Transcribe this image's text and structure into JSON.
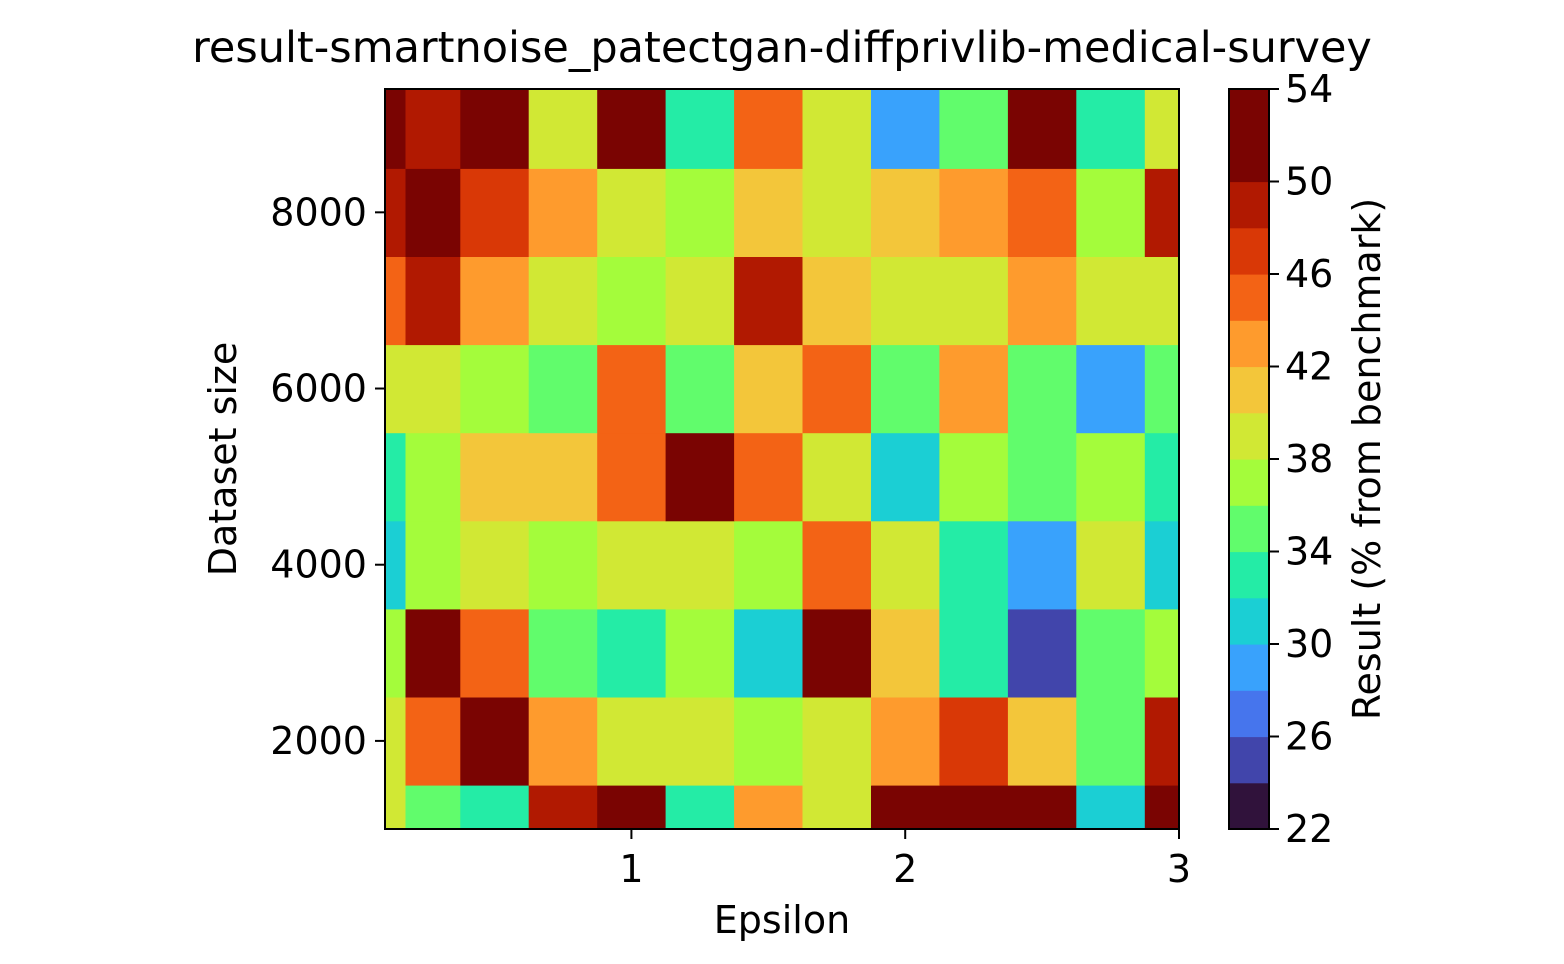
{
  "chart_data": {
    "type": "heatmap",
    "title": "result-smartnoise_patectgan-diffprivlib-medical-survey",
    "xlabel": "Epsilon",
    "ylabel": "Dataset size",
    "colorbar_label": "Result (% from benchmark)",
    "xlim": [
      0.1,
      3.0
    ],
    "ylim": [
      1000,
      9400
    ],
    "x": [
      0.1,
      0.25,
      0.5,
      0.75,
      1.0,
      1.25,
      1.5,
      1.75,
      2.0,
      2.25,
      2.5,
      2.75,
      3.0
    ],
    "y": [
      1000,
      2000,
      3000,
      4000,
      5000,
      6000,
      7000,
      8000,
      9000
    ],
    "z": [
      [
        38,
        34,
        32,
        48,
        52,
        32,
        42,
        38,
        52,
        54,
        50,
        30,
        50
      ],
      [
        38,
        44,
        52,
        42,
        38,
        38,
        36,
        38,
        42,
        46,
        40,
        34,
        48
      ],
      [
        36,
        52,
        44,
        34,
        32,
        36,
        30,
        52,
        40,
        32,
        24,
        34,
        36
      ],
      [
        30,
        36,
        38,
        36,
        38,
        38,
        36,
        44,
        38,
        32,
        28,
        38,
        30
      ],
      [
        32,
        36,
        40,
        40,
        44,
        52,
        44,
        38,
        30,
        36,
        34,
        36,
        32
      ],
      [
        38,
        38,
        36,
        34,
        44,
        34,
        40,
        44,
        34,
        42,
        34,
        28,
        34
      ],
      [
        44,
        48,
        42,
        38,
        36,
        38,
        48,
        40,
        38,
        38,
        42,
        38,
        38
      ],
      [
        48,
        52,
        46,
        42,
        38,
        36,
        40,
        38,
        40,
        42,
        44,
        36,
        48
      ],
      [
        52,
        48,
        50,
        38,
        50,
        32,
        44,
        38,
        28,
        34,
        52,
        32,
        38
      ]
    ],
    "xticks": [
      1,
      2,
      3
    ],
    "yticks": [
      2000,
      4000,
      6000,
      8000
    ],
    "colorbar_ticks": [
      22,
      26,
      30,
      34,
      38,
      42,
      46,
      50,
      54
    ],
    "levels": [
      22,
      24,
      26,
      28,
      30,
      32,
      34,
      36,
      38,
      40,
      42,
      44,
      46,
      48,
      50,
      52,
      54
    ],
    "level_colors": [
      "#30123b",
      "#4145ab",
      "#4675ed",
      "#39a2fc",
      "#1bcfd4",
      "#24eca6",
      "#61fc6c",
      "#a4fc3b",
      "#d1e834",
      "#f3c63a",
      "#fe9b2d",
      "#f36315",
      "#d93806",
      "#b11901",
      "#7a0402",
      "#7a0402"
    ],
    "colormap": "turbo",
    "grid": false
  }
}
